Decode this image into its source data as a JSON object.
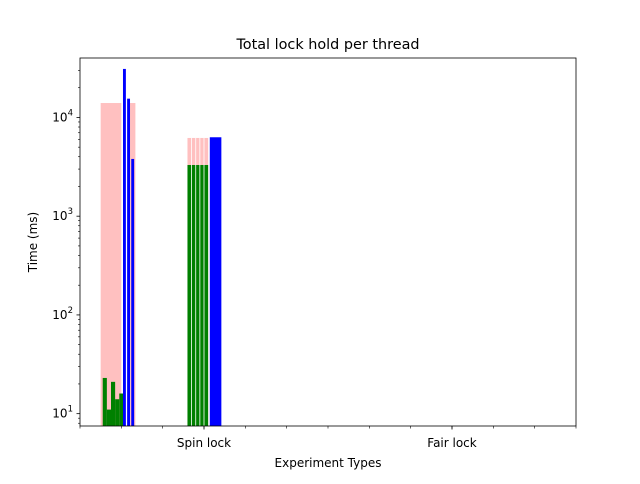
{
  "chart_data": {
    "type": "bar",
    "title": "Total lock hold per thread",
    "xlabel": "Experiment Types",
    "ylabel": "Time (ms)",
    "yscale": "log",
    "ylim": [
      7.5,
      40000
    ],
    "x_range": [
      0,
      12
    ],
    "x_tick_labels": [
      {
        "x": 3,
        "label": "Spin lock"
      },
      {
        "x": 9,
        "label": "Fair lock"
      }
    ],
    "x_minor_ticks": [
      0,
      1,
      2,
      3,
      4,
      5,
      6,
      7,
      8,
      9,
      10,
      11,
      12
    ],
    "y_ticks": [
      {
        "value": 10,
        "base": "10",
        "exp": "1"
      },
      {
        "value": 100,
        "base": "10",
        "exp": "2"
      },
      {
        "value": 1000,
        "base": "10",
        "exp": "3"
      },
      {
        "value": 10000,
        "base": "10",
        "exp": "4"
      }
    ],
    "colors": {
      "pink": "#ffc0c0",
      "green": "#008000",
      "blue": "#0000ff"
    },
    "series": [
      {
        "color_key": "pink",
        "bars": [
          {
            "x": 0.5,
            "width": 0.5,
            "value": 14000
          },
          {
            "x": 1.2,
            "width": 0.14,
            "value": 14000
          },
          {
            "x": 2.6,
            "width": 0.5,
            "value": 6200
          }
        ]
      },
      {
        "color_key": "green",
        "bars": [
          {
            "x": 0.55,
            "width": 0.1,
            "value": 23
          },
          {
            "x": 0.65,
            "width": 0.1,
            "value": 11
          },
          {
            "x": 0.75,
            "width": 0.1,
            "value": 21
          },
          {
            "x": 0.85,
            "width": 0.1,
            "value": 14
          },
          {
            "x": 0.95,
            "width": 0.1,
            "value": 16
          },
          {
            "x": 2.6,
            "width": 0.5,
            "value": 3300
          }
        ]
      },
      {
        "color_key": "blue",
        "bars": [
          {
            "x": 1.04,
            "width": 0.07,
            "value": 31000
          },
          {
            "x": 1.14,
            "width": 0.07,
            "value": 15500
          },
          {
            "x": 1.24,
            "width": 0.07,
            "value": 3800
          },
          {
            "x": 3.14,
            "width": 0.28,
            "value": 6300
          }
        ]
      }
    ]
  }
}
